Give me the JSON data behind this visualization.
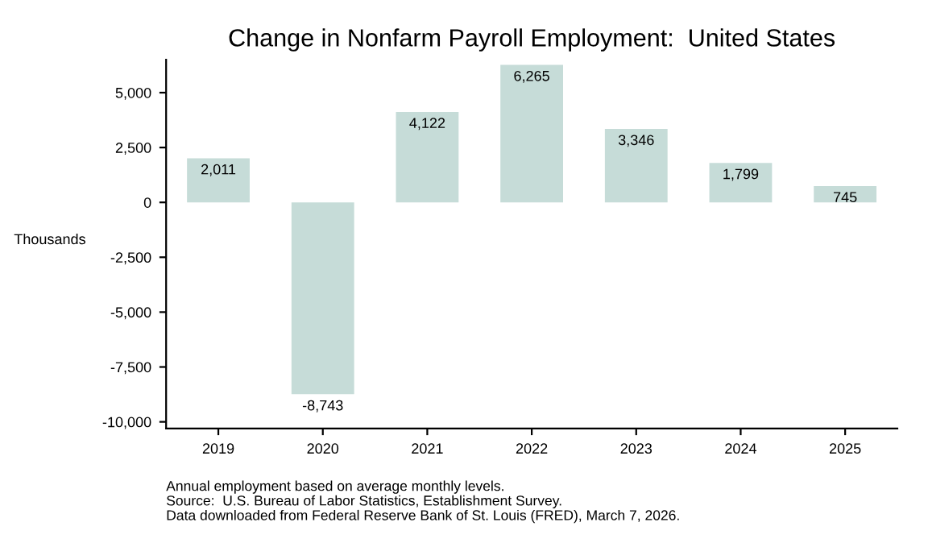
{
  "chart_data": {
    "type": "bar",
    "title": "Change in Nonfarm Payroll Employment:  United States",
    "ylabel": "Thousands",
    "categories": [
      "2019",
      "2020",
      "2021",
      "2022",
      "2023",
      "2024",
      "2025"
    ],
    "values": [
      2011,
      -8743,
      4122,
      6265,
      3346,
      1799,
      745
    ],
    "value_labels": [
      "2,011",
      "-8,743",
      "4,122",
      "6,265",
      "3,346",
      "1,799",
      "745"
    ],
    "color": "#c6dcd8",
    "ylim": [
      -10300,
      6500
    ],
    "yticks": [
      {
        "value": -10000,
        "label": "-10,000"
      },
      {
        "value": -7500,
        "label": "-7,500"
      },
      {
        "value": -5000,
        "label": "-5,000"
      },
      {
        "value": -2500,
        "label": "-2,500"
      },
      0,
      {
        "value": 2500,
        "label": "2,500"
      },
      {
        "value": 5000,
        "label": "5,000"
      }
    ],
    "grid": false,
    "annotations": [
      "Annual employment based on average monthly levels.",
      "Source:  U.S. Bureau of Labor Statistics, Establishment Survey.",
      "Data downloaded from Federal Reserve Bank of St. Louis (FRED), March 7, 2026."
    ]
  }
}
